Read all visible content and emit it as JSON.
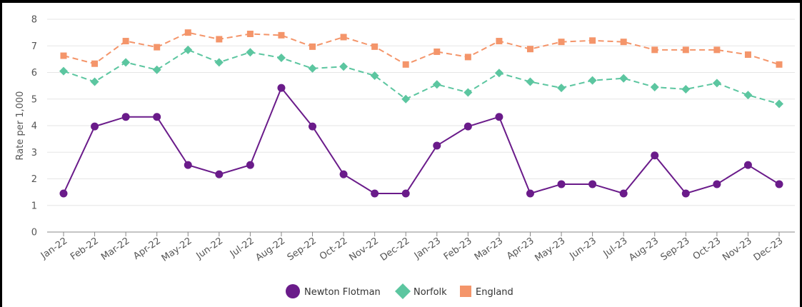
{
  "chart_data": {
    "type": "line",
    "ylabel": "Rate per 1,000",
    "ylim": [
      0,
      8
    ],
    "yticks": [
      0,
      1,
      2,
      3,
      4,
      5,
      6,
      7,
      8
    ],
    "categories": [
      "Jan-22",
      "Feb-22",
      "Mar-22",
      "Apr-22",
      "May-22",
      "Jun-22",
      "Jul-22",
      "Aug-22",
      "Sep-22",
      "Oct-22",
      "Nov-22",
      "Dec-22",
      "Jan-23",
      "Feb-23",
      "Mar-23",
      "Apr-23",
      "May-23",
      "Jun-23",
      "Jul-23",
      "Aug-23",
      "Sep-23",
      "Oct-23",
      "Nov-23",
      "Dec-23"
    ],
    "grid": true,
    "legend_position": "bottom",
    "series": [
      {
        "name": "Newton Flotman",
        "color": "#6a1b8a",
        "marker": "circle",
        "line_style": "solid",
        "values": [
          1.45,
          3.97,
          4.33,
          4.33,
          2.52,
          2.17,
          2.52,
          5.42,
          3.97,
          2.17,
          1.45,
          1.45,
          3.25,
          3.97,
          4.33,
          1.45,
          1.8,
          1.8,
          1.45,
          2.88,
          1.45,
          1.8,
          2.52,
          1.8
        ]
      },
      {
        "name": "Norfolk",
        "color": "#5cc6a0",
        "marker": "diamond",
        "line_style": "dashed",
        "values": [
          6.05,
          5.65,
          6.38,
          6.1,
          6.85,
          6.38,
          6.76,
          6.55,
          6.15,
          6.22,
          5.88,
          5.0,
          5.55,
          5.25,
          5.98,
          5.65,
          5.42,
          5.7,
          5.78,
          5.45,
          5.37,
          5.6,
          5.15,
          4.82
        ]
      },
      {
        "name": "England",
        "color": "#f4956a",
        "marker": "square",
        "line_style": "dashed",
        "values": [
          6.63,
          6.33,
          7.18,
          6.95,
          7.5,
          7.25,
          7.45,
          7.4,
          6.97,
          7.33,
          6.97,
          6.3,
          6.78,
          6.58,
          7.18,
          6.88,
          7.15,
          7.2,
          7.15,
          6.85,
          6.85,
          6.85,
          6.67,
          6.3
        ]
      }
    ]
  }
}
